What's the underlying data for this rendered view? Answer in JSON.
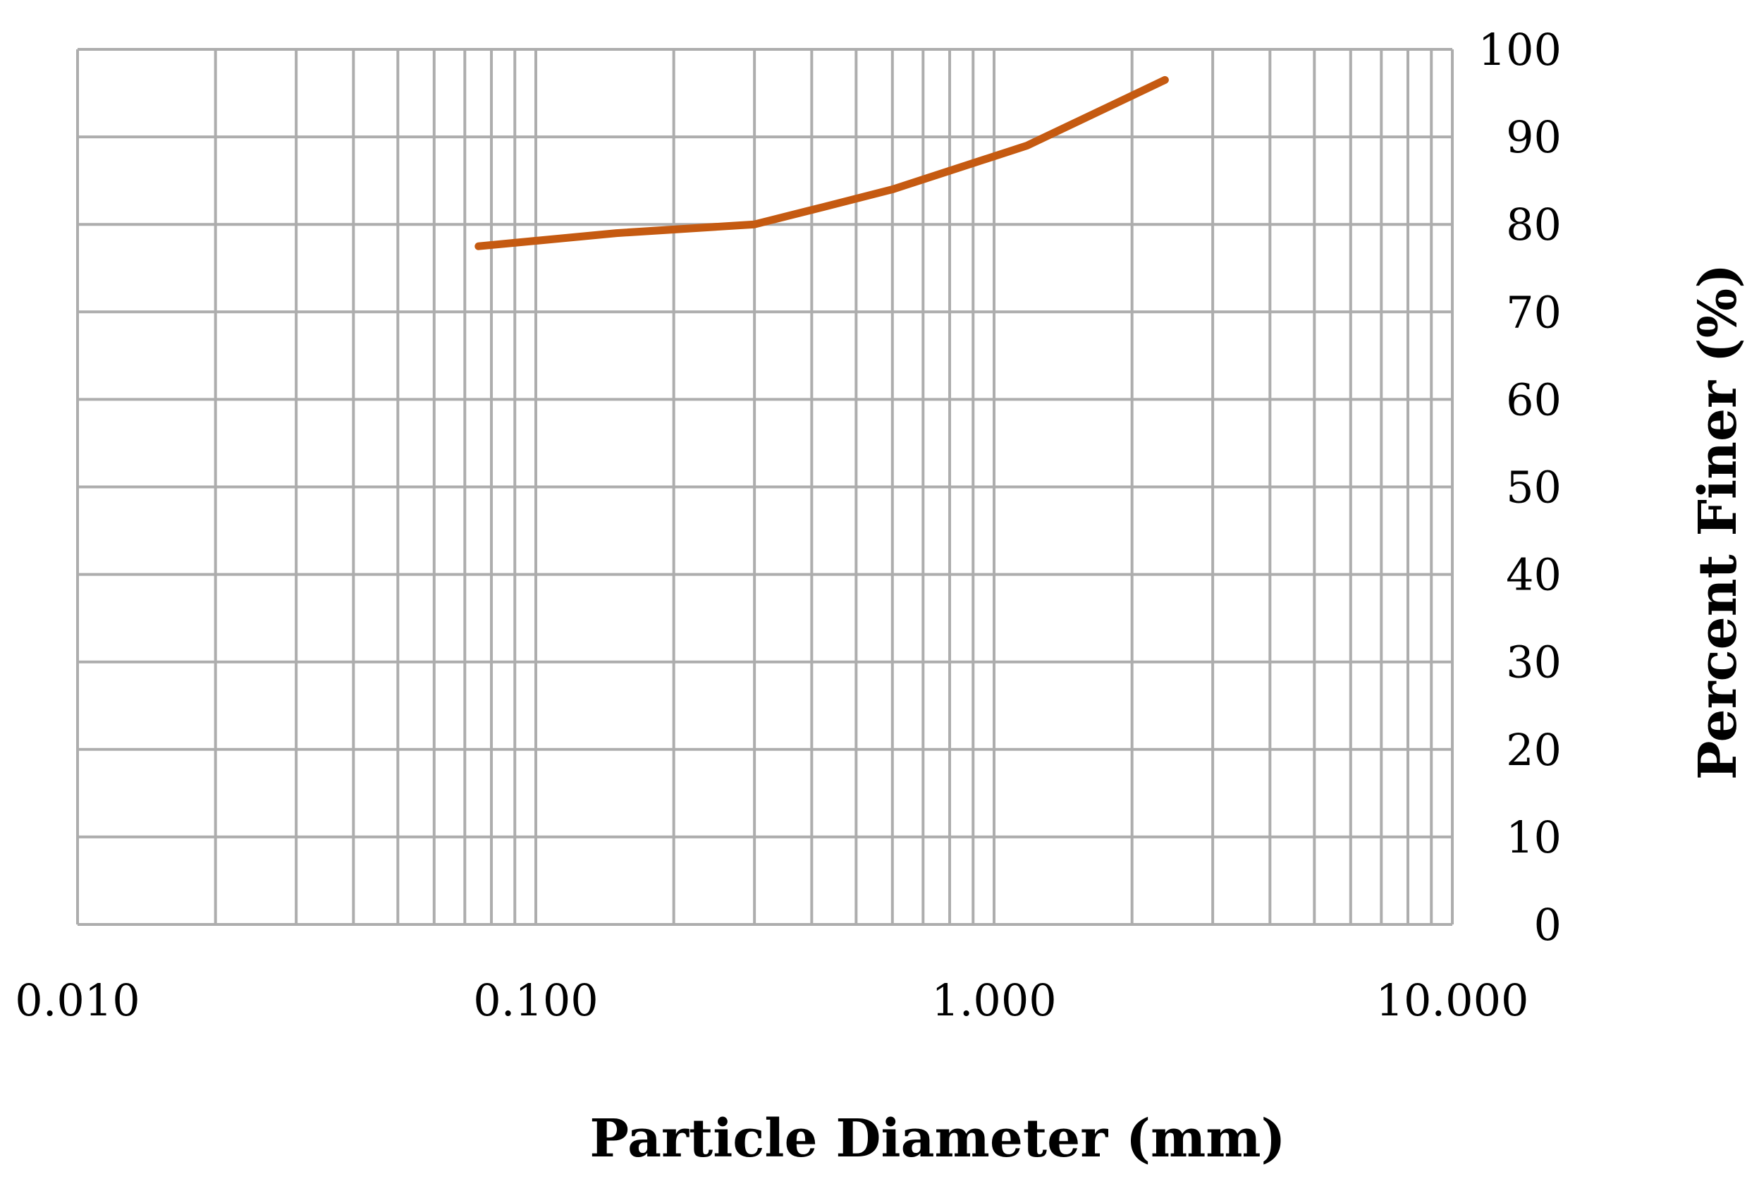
{
  "chart_data": {
    "type": "line",
    "title": "",
    "xlabel": "Particle Diameter (mm)",
    "ylabel": "Percent Finer (%)",
    "x_scale": "log",
    "xlim": [
      0.01,
      10
    ],
    "ylim": [
      0,
      100
    ],
    "x_ticks": [
      "0.010",
      "0.100",
      "1.000",
      "10.000"
    ],
    "y_ticks": [
      "0",
      "10",
      "20",
      "30",
      "40",
      "50",
      "60",
      "70",
      "80",
      "90",
      "100"
    ],
    "y_axis_position": "right",
    "grid": true,
    "legend": "none",
    "colors": {
      "line": "#C55A11",
      "grid": "#ADADAD"
    },
    "series": [
      {
        "x": [
          0.075,
          0.15,
          0.3,
          0.425,
          0.6,
          1.18,
          2.36
        ],
        "y": [
          77.5,
          79.0,
          80.0,
          82.0,
          84.0,
          89.0,
          96.5
        ]
      }
    ]
  }
}
